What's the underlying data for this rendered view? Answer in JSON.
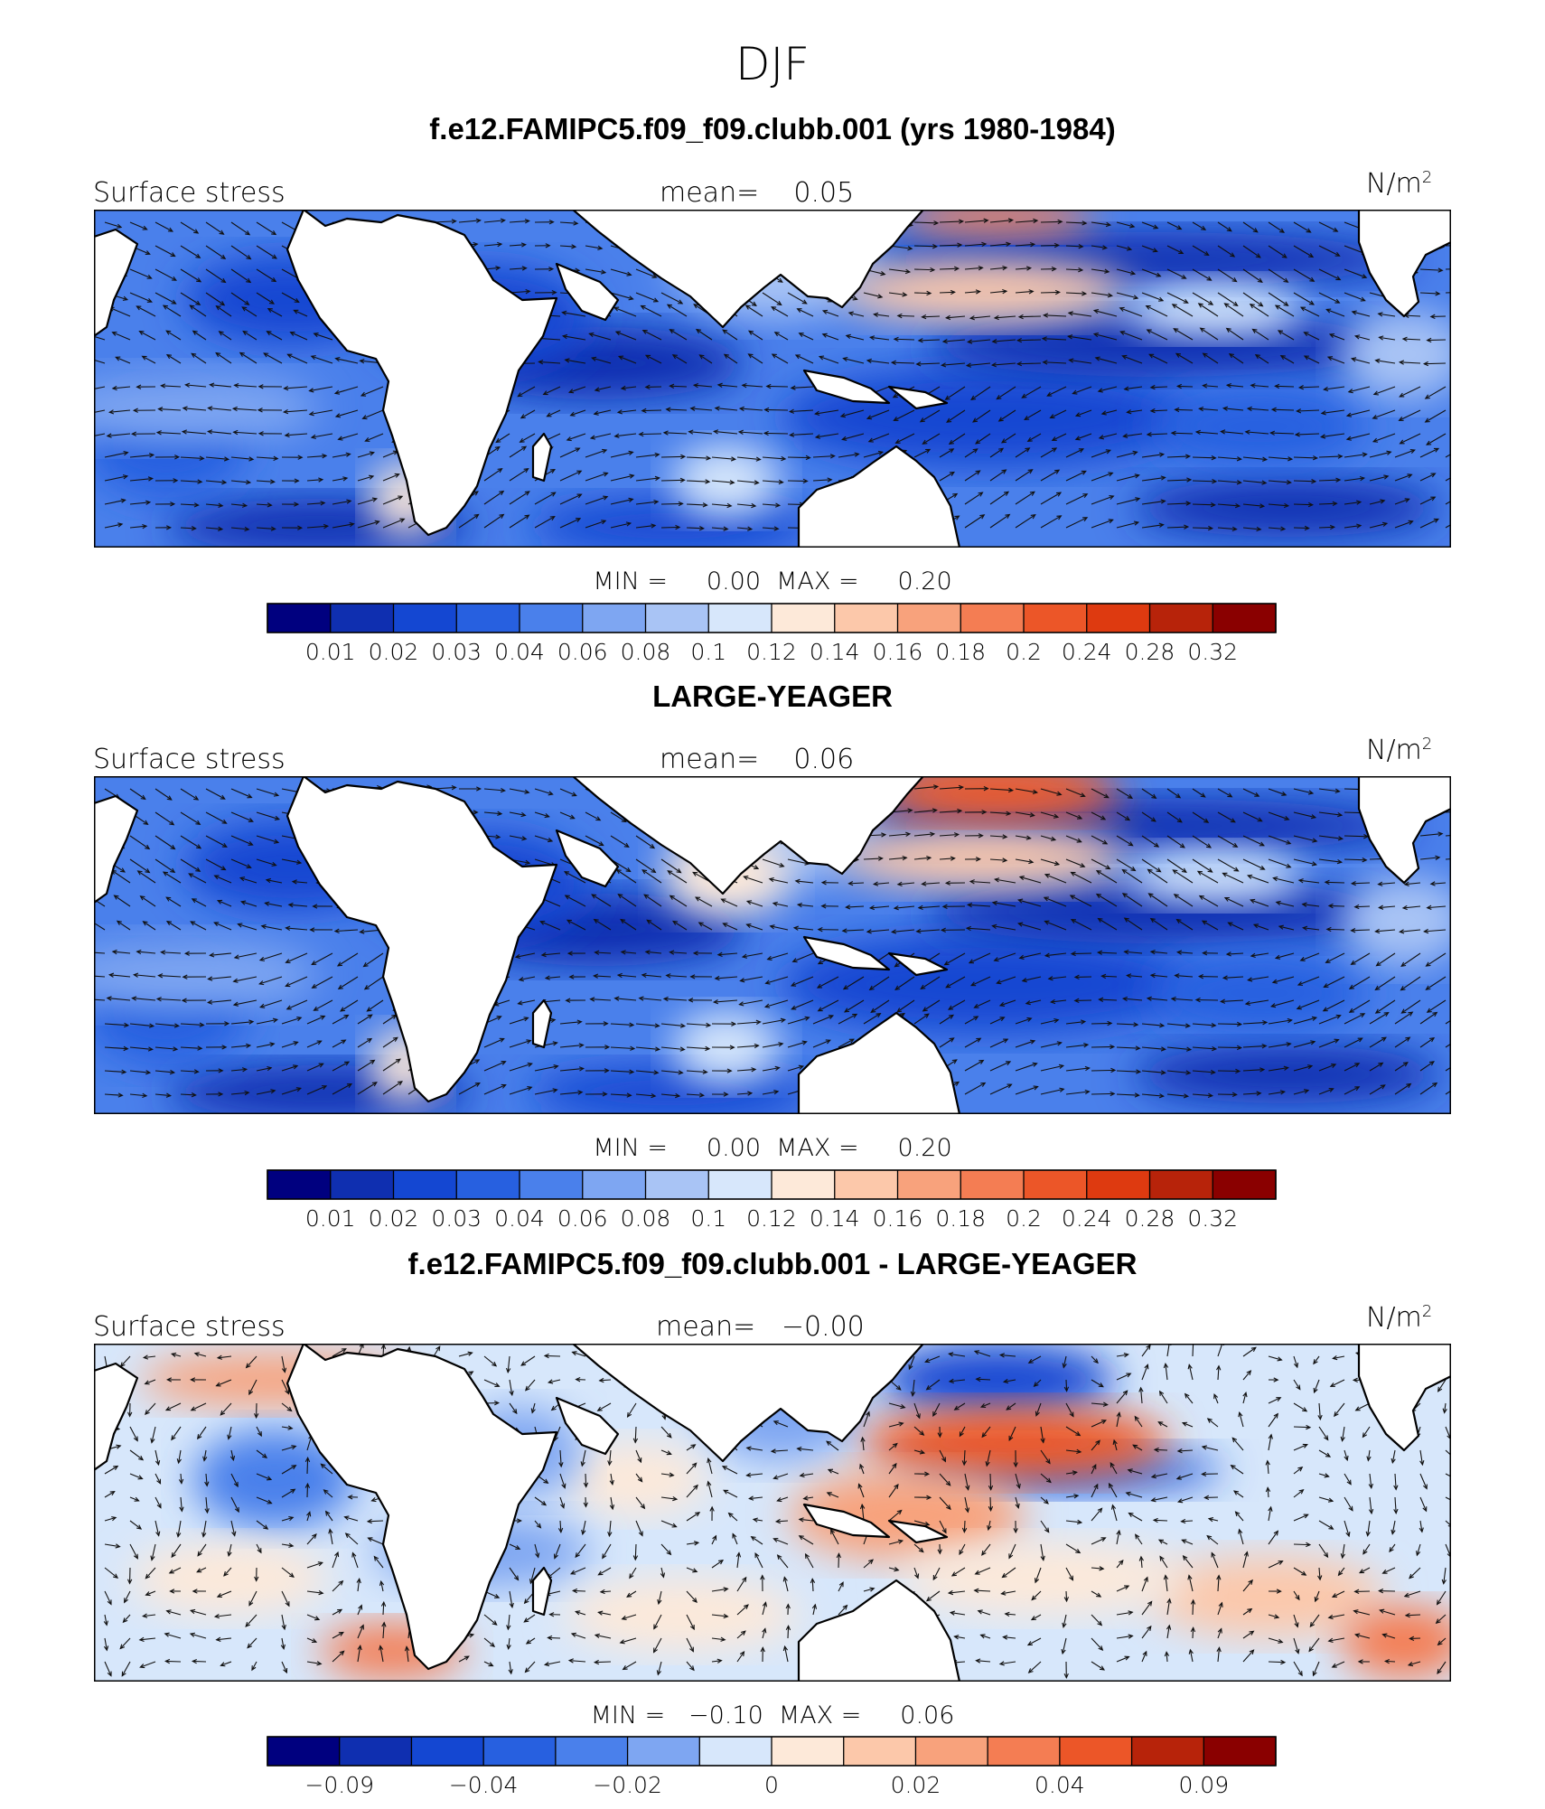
{
  "season": "DJF",
  "panels": [
    {
      "title": "f.e12.FAMIPC5.f09_f09.clubb.001 (yrs 1980-1984)",
      "variable_label": "Surface stress",
      "mean_text": "mean=    0.05",
      "units_base": "N/m",
      "units_exp": "2",
      "stats_text": "MIN =     0.00  MAX =     0.20",
      "colorbar_ticks": [
        "0.01",
        "0.02",
        "0.03",
        "0.04",
        "0.06",
        "0.08",
        "0.1",
        "0.12",
        "0.14",
        "0.16",
        "0.18",
        "0.2",
        "0.24",
        "0.28",
        "0.32"
      ]
    },
    {
      "title": "LARGE-YEAGER",
      "variable_label": "Surface stress",
      "mean_text": "mean=    0.06",
      "units_base": "N/m",
      "units_exp": "2",
      "stats_text": "MIN =     0.00  MAX =     0.20",
      "colorbar_ticks": [
        "0.01",
        "0.02",
        "0.03",
        "0.04",
        "0.06",
        "0.08",
        "0.1",
        "0.12",
        "0.14",
        "0.16",
        "0.18",
        "0.2",
        "0.24",
        "0.28",
        "0.32"
      ]
    },
    {
      "title": "f.e12.FAMIPC5.f09_f09.clubb.001 - LARGE-YEAGER",
      "variable_label": "Surface stress",
      "mean_text": "mean=   −0.00",
      "units_base": "N/m",
      "units_exp": "2",
      "stats_text": "MIN =   −0.10  MAX =     0.06",
      "colorbar_ticks": [
        "−0.09",
        "",
        "−0.04",
        "",
        "−0.02",
        "",
        "0",
        "",
        "0.02",
        "",
        "0.04",
        "",
        "0.09"
      ]
    }
  ],
  "chart_data": [
    {
      "type": "heatmap",
      "title": "f.e12.FAMIPC5.f09_f09.clubb.001 (yrs 1980-1984)",
      "field": "Surface stress",
      "units": "N/m2",
      "mean": 0.05,
      "min": 0.0,
      "max": 0.2,
      "contour_levels": [
        0.01,
        0.02,
        0.03,
        0.04,
        0.06,
        0.08,
        0.1,
        0.12,
        0.14,
        0.16,
        0.18,
        0.2,
        0.24,
        0.28,
        0.32
      ],
      "colormap": [
        "#00007f",
        "#0f2fb0",
        "#1447d2",
        "#2760e0",
        "#4a80eb",
        "#7ea6f2",
        "#a9c4f5",
        "#d7e7fb",
        "#fde9d9",
        "#fcc8aa",
        "#f8a27c",
        "#f47d53",
        "#ec5628",
        "#de3a10",
        "#b7230a",
        "#8a0000"
      ]
    },
    {
      "type": "heatmap",
      "title": "LARGE-YEAGER",
      "field": "Surface stress",
      "units": "N/m2",
      "mean": 0.06,
      "min": 0.0,
      "max": 0.2,
      "contour_levels": [
        0.01,
        0.02,
        0.03,
        0.04,
        0.06,
        0.08,
        0.1,
        0.12,
        0.14,
        0.16,
        0.18,
        0.2,
        0.24,
        0.28,
        0.32
      ],
      "colormap": [
        "#00007f",
        "#0f2fb0",
        "#1447d2",
        "#2760e0",
        "#4a80eb",
        "#7ea6f2",
        "#a9c4f5",
        "#d7e7fb",
        "#fde9d9",
        "#fcc8aa",
        "#f8a27c",
        "#f47d53",
        "#ec5628",
        "#de3a10",
        "#b7230a",
        "#8a0000"
      ]
    },
    {
      "type": "heatmap",
      "title": "f.e12.FAMIPC5.f09_f09.clubb.001 - LARGE-YEAGER",
      "field": "Surface stress",
      "units": "N/m2",
      "mean": -0.0,
      "min": -0.1,
      "max": 0.06,
      "contour_levels": [
        -0.09,
        -0.06,
        -0.04,
        -0.03,
        -0.02,
        -0.01,
        0,
        0.01,
        0.02,
        0.03,
        0.04,
        0.06,
        0.09
      ],
      "colormap": [
        "#00007f",
        "#0f2fb0",
        "#1447d2",
        "#2760e0",
        "#4a80eb",
        "#7ea6f2",
        "#d7e7fb",
        "#fde9d9",
        "#fcc8aa",
        "#f8a27c",
        "#f47d53",
        "#ec5628",
        "#b7230a",
        "#8a0000"
      ]
    }
  ]
}
